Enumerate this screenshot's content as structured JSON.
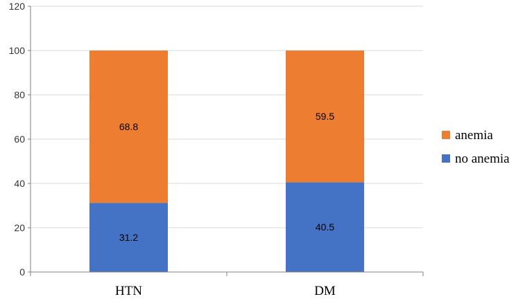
{
  "chart_data": {
    "type": "bar",
    "stacked": true,
    "categories": [
      "HTN",
      "DM"
    ],
    "series": [
      {
        "name": "no anemia",
        "values": [
          31.2,
          40.5
        ],
        "labels": [
          "31.2",
          "40.5"
        ],
        "color": "#4472C4"
      },
      {
        "name": "anemia",
        "values": [
          68.8,
          59.5
        ],
        "labels": [
          "68.8",
          "59.5"
        ],
        "color": "#ED7D31"
      }
    ],
    "title": "",
    "xlabel": "",
    "ylabel": "",
    "ylim": [
      0,
      120
    ],
    "yticks": [
      0,
      20,
      40,
      60,
      80,
      100,
      120
    ],
    "grid": true,
    "legend_position": "right",
    "legend_order": [
      "anemia",
      "no anemia"
    ]
  }
}
